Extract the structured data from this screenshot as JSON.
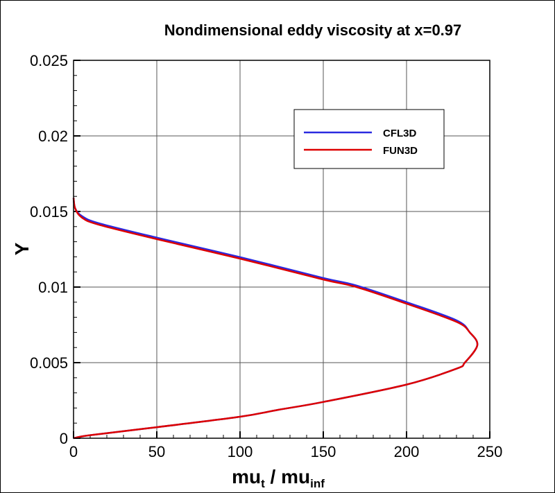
{
  "chart_data": {
    "type": "line",
    "title": "Nondimensional eddy viscosity at x=0.97",
    "xlabel": "mu",
    "xlabel_sub1": "t",
    "xlabel_mid": " / mu",
    "xlabel_sub2": "inf",
    "ylabel": "Y",
    "xlim": [
      0,
      250
    ],
    "ylim": [
      0,
      0.025
    ],
    "xticks": [
      "0",
      "50",
      "100",
      "150",
      "200",
      "250"
    ],
    "yticks": [
      "0",
      "0.005",
      "0.01",
      "0.015",
      "0.02",
      "0.025"
    ],
    "grid": true,
    "legend_placement": "top-right",
    "series": [
      {
        "name": "CFL3D",
        "color": "#2a2ae0",
        "x": [
          0,
          10,
          50,
          100,
          123,
          150,
          200,
          230,
          235,
          242.5,
          238,
          230,
          200,
          170,
          150,
          100,
          50,
          15,
          5,
          1,
          0
        ],
        "y": [
          0,
          0.0002,
          0.00073,
          0.00142,
          0.00188,
          0.0024,
          0.00355,
          0.0046,
          0.005,
          0.00615,
          0.007,
          0.0078,
          0.009,
          0.0101,
          0.0106,
          0.01198,
          0.01327,
          0.01423,
          0.0147,
          0.0152,
          0.0159
        ]
      },
      {
        "name": "FUN3D",
        "color": "#dd0000",
        "x": [
          0,
          10,
          50,
          100,
          123,
          150,
          200,
          230,
          235,
          242.5,
          238,
          230,
          200,
          170,
          150,
          100,
          50,
          15,
          5,
          1,
          0
        ],
        "y": [
          0,
          0.0002,
          0.00073,
          0.00142,
          0.00188,
          0.0024,
          0.00355,
          0.0046,
          0.005,
          0.00615,
          0.007,
          0.0077,
          0.0089,
          0.01,
          0.0105,
          0.01188,
          0.01317,
          0.01413,
          0.0146,
          0.0152,
          0.0159
        ]
      }
    ]
  }
}
